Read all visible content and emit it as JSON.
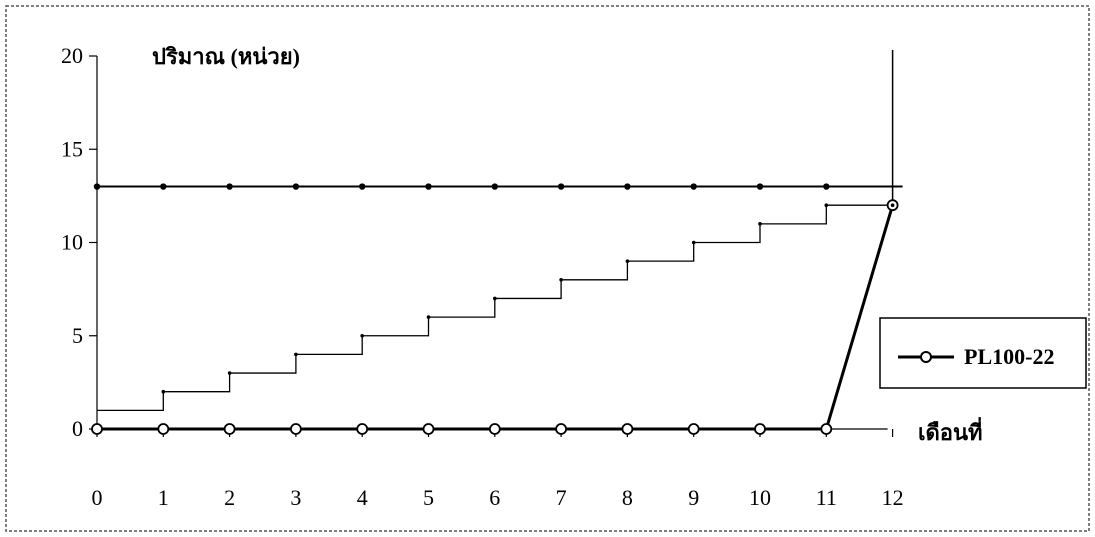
{
  "chart_data": {
    "type": "line",
    "title": "",
    "ylabel": "ปริมาณ (หน่วย)",
    "xlabel": "เดือนที่",
    "x": [
      0,
      1,
      2,
      3,
      4,
      5,
      6,
      7,
      8,
      9,
      10,
      11,
      12
    ],
    "xlim": [
      0,
      12
    ],
    "ylim": [
      0,
      20
    ],
    "yticks": [
      0,
      5,
      10,
      15,
      20
    ],
    "grid": false,
    "legend_position": "right",
    "series": [
      {
        "name": "PL100-22",
        "style": "line-open-circle",
        "color": "#000000",
        "values": [
          0,
          0,
          0,
          0,
          0,
          0,
          0,
          0,
          0,
          0,
          0,
          0,
          12
        ]
      },
      {
        "name": "",
        "style": "line-filled-dot",
        "color": "#000000",
        "values": [
          13,
          13,
          13,
          13,
          13,
          13,
          13,
          13,
          13,
          13,
          13,
          13,
          13
        ]
      },
      {
        "name": "",
        "style": "step",
        "color": "#000000",
        "values": [
          1,
          2,
          3,
          4,
          5,
          6,
          7,
          8,
          9,
          10,
          11,
          12,
          12
        ]
      }
    ]
  }
}
